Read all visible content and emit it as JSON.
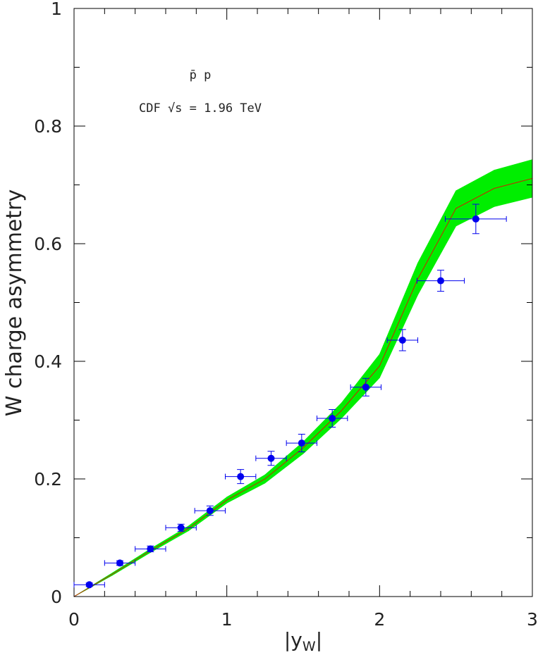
{
  "chart_data": {
    "type": "errorbar",
    "ylabel": "W charge asymmetry",
    "xlabel": {
      "main": "|y",
      "sub": "W",
      "end": "|"
    },
    "annotations": [
      "p̄ p",
      "CDF √s = 1.96 TeV"
    ],
    "x": [
      0.1,
      0.3,
      0.5,
      0.7,
      0.89,
      1.09,
      1.29,
      1.49,
      1.69,
      1.91,
      2.15,
      2.4,
      2.63
    ],
    "values": [
      0.02,
      0.057,
      0.081,
      0.117,
      0.146,
      0.204,
      0.235,
      0.261,
      0.303,
      0.356,
      0.436,
      0.537,
      0.642
    ],
    "yerr": [
      0.003,
      0.004,
      0.005,
      0.006,
      0.008,
      0.012,
      0.012,
      0.015,
      0.015,
      0.015,
      0.018,
      0.018,
      0.025
    ],
    "xerr": [
      0.1,
      0.1,
      0.1,
      0.1,
      0.1,
      0.1,
      0.1,
      0.1,
      0.1,
      0.1,
      0.1,
      0.155,
      0.2
    ],
    "color": "#0000ee",
    "curve": {
      "x": [
        0,
        0.25,
        0.5,
        0.75,
        1,
        1.25,
        1.5,
        1.75,
        2,
        2.25,
        2.5,
        2.75,
        3
      ],
      "values": [
        0,
        0.038,
        0.078,
        0.116,
        0.164,
        0.2,
        0.253,
        0.316,
        0.392,
        0.54,
        0.66,
        0.694,
        0.711
      ],
      "lower": [
        0,
        0.036,
        0.075,
        0.112,
        0.159,
        0.193,
        0.243,
        0.303,
        0.372,
        0.513,
        0.63,
        0.663,
        0.679
      ],
      "upper": [
        0,
        0.04,
        0.081,
        0.12,
        0.169,
        0.207,
        0.263,
        0.329,
        0.412,
        0.567,
        0.69,
        0.725,
        0.743
      ],
      "color": "#cc2200",
      "band_color": "#00ee00"
    },
    "xlim": [
      0,
      3
    ],
    "ylim": [
      0,
      1
    ],
    "xticks": [
      0,
      1,
      2,
      3
    ],
    "yticks": [
      0,
      0.2,
      0.4,
      0.6,
      0.8,
      1
    ],
    "xminorticks": [
      0.2,
      0.4,
      0.6,
      0.8,
      1.2,
      1.4,
      1.6,
      1.8,
      2.2,
      2.4,
      2.6,
      2.8
    ],
    "yminorticks": [
      0.1,
      0.3,
      0.5,
      0.7,
      0.9
    ]
  }
}
